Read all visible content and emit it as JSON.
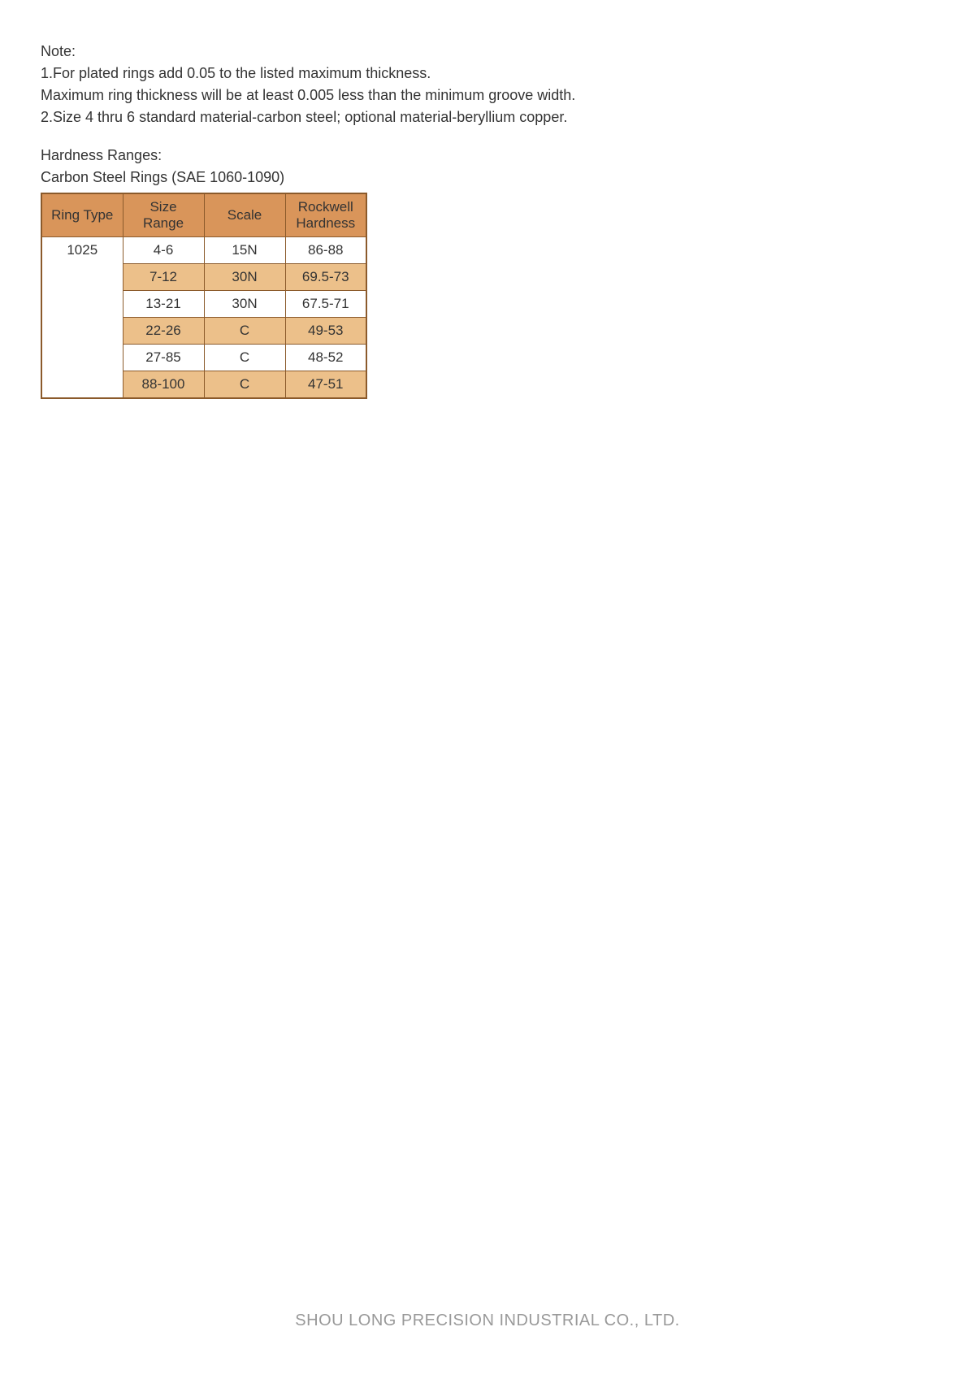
{
  "note": {
    "title": "Note:",
    "line1": "1.For plated rings add 0.05 to the listed maximum thickness.",
    "line2": "Maximum ring thickness will be at least 0.005 less than the minimum groove width.",
    "line3": "2.Size 4 thru 6 standard material-carbon steel; optional material-beryllium copper."
  },
  "hardness": {
    "title": "Hardness Ranges:",
    "subtitle": "Carbon Steel Rings (SAE 1060-1090)",
    "table": {
      "headers": {
        "col0": "Ring Type",
        "col1": "Size Range",
        "col2": "Scale",
        "col3": "Rockwell\nHardness"
      },
      "ring_type": "1025",
      "rows": [
        {
          "size_range": "4-6",
          "scale": "15N",
          "hardness": "86-88",
          "alt": false
        },
        {
          "size_range": "7-12",
          "scale": "30N",
          "hardness": "69.5-73",
          "alt": true
        },
        {
          "size_range": "13-21",
          "scale": "30N",
          "hardness": "67.5-71",
          "alt": false
        },
        {
          "size_range": "22-26",
          "scale": "C",
          "hardness": "49-53",
          "alt": true
        },
        {
          "size_range": "27-85",
          "scale": "C",
          "hardness": "48-52",
          "alt": false
        },
        {
          "size_range": "88-100",
          "scale": "C",
          "hardness": "47-51",
          "alt": true
        }
      ]
    }
  },
  "footer": {
    "company": "SHOU LONG PRECISION INDUSTRIAL CO., LTD."
  },
  "colors": {
    "header_bg": "#d9955a",
    "row_alt_bg": "#ecc08a",
    "border": "#8b5a2b",
    "text": "#333333",
    "footer_text": "#999999",
    "background": "#ffffff"
  }
}
